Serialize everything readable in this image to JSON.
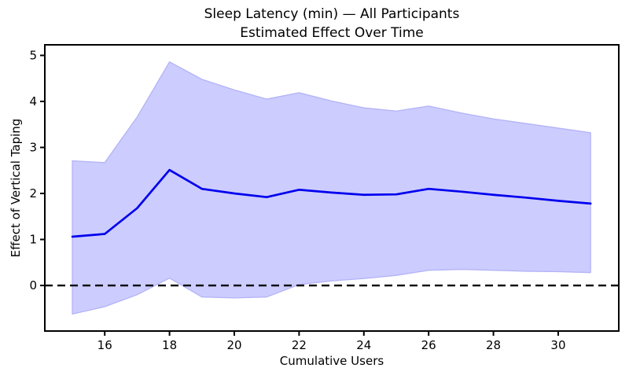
{
  "figure": {
    "title_line1": "Sleep Latency (min) — All Participants",
    "title_line2": "Estimated Effect Over Time",
    "xlabel": "Cumulative Users",
    "ylabel": "Effect of Vertical Taping"
  },
  "chart_data": {
    "type": "line",
    "title": "Sleep Latency (min) — All Participants\nEstimated Effect Over Time",
    "xlabel": "Cumulative Users",
    "ylabel": "Effect of Vertical Taping",
    "x": [
      15,
      16,
      17,
      18,
      19,
      20,
      21,
      22,
      23,
      24,
      25,
      26,
      27,
      28,
      29,
      30,
      31
    ],
    "series": [
      {
        "name": "estimated-effect",
        "style": "solid-line",
        "values": [
          1.06,
          1.12,
          1.68,
          2.51,
          2.1,
          2.0,
          1.92,
          2.08,
          2.02,
          1.97,
          1.98,
          2.1,
          2.04,
          1.97,
          1.91,
          1.84,
          1.78
        ]
      },
      {
        "name": "confidence-upper",
        "style": "band-edge",
        "values": [
          2.71,
          2.67,
          3.66,
          4.86,
          4.48,
          4.25,
          4.05,
          4.19,
          4.01,
          3.86,
          3.79,
          3.9,
          3.75,
          3.62,
          3.52,
          3.42,
          3.32
        ]
      },
      {
        "name": "confidence-lower",
        "style": "band-edge",
        "values": [
          -0.62,
          -0.46,
          -0.2,
          0.16,
          -0.25,
          -0.27,
          -0.25,
          0.02,
          0.1,
          0.15,
          0.22,
          0.33,
          0.35,
          0.33,
          0.31,
          0.3,
          0.28
        ]
      }
    ],
    "zero_line": {
      "y": 0,
      "style": "dashed",
      "color": "#000000"
    },
    "xticks": [
      16,
      18,
      20,
      22,
      24,
      26,
      28,
      30
    ],
    "yticks": [
      0,
      1,
      2,
      3,
      4,
      5
    ],
    "xlim": [
      14.15,
      31.87
    ],
    "ylim": [
      -0.99,
      5.23
    ],
    "grid": false,
    "legend": "none",
    "colors": {
      "line": "#0000ee",
      "band_fill": "#ccccff",
      "band_edge": "#b3b3f7",
      "axis": "#000000",
      "background": "#ffffff"
    }
  }
}
